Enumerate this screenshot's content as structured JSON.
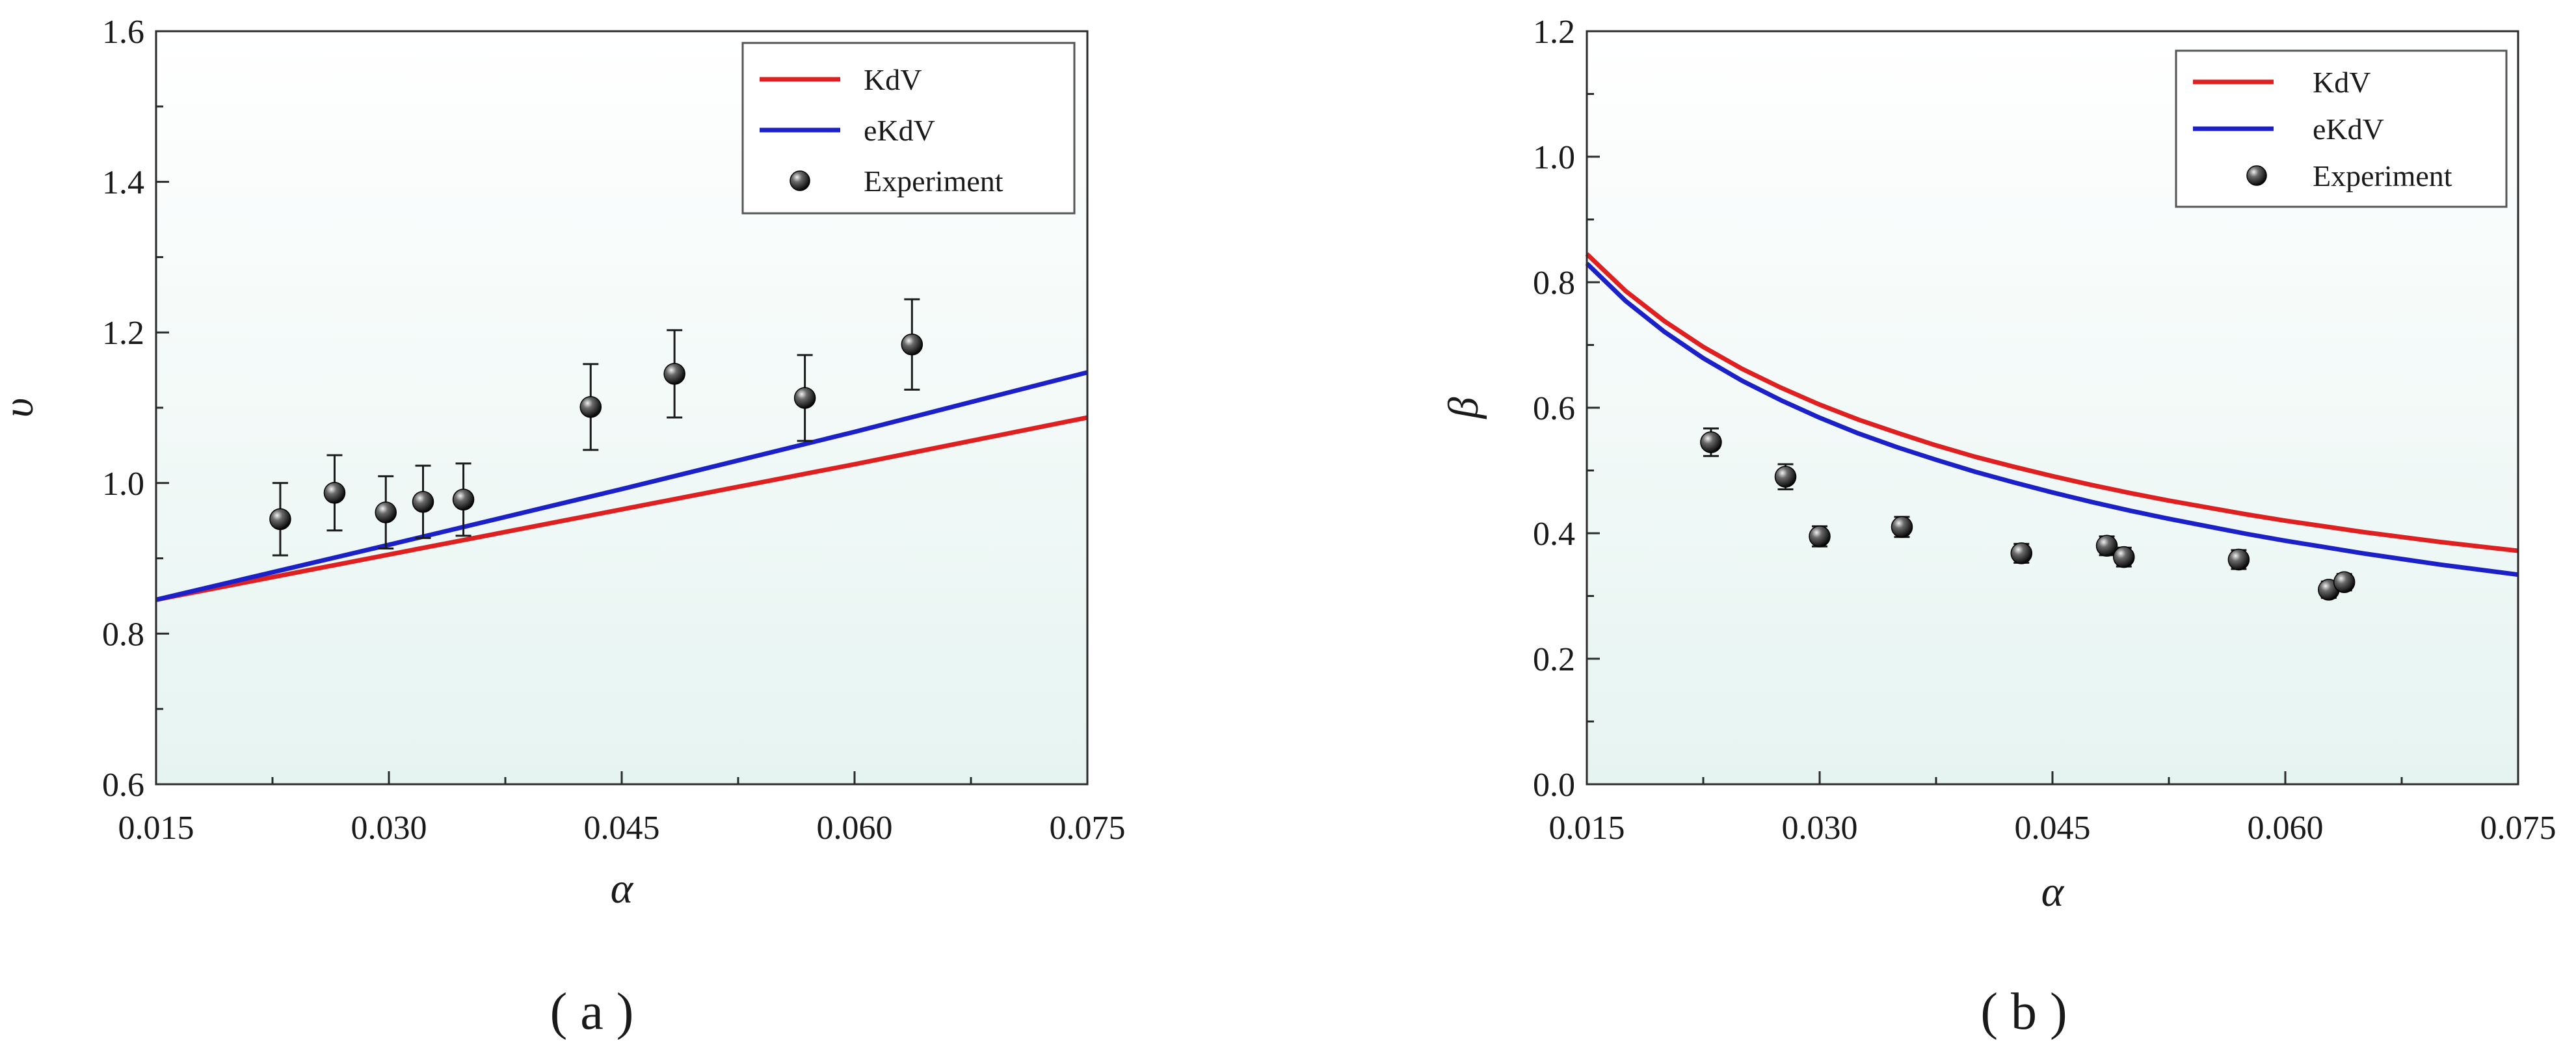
{
  "chart_data": [
    {
      "type": "line",
      "panel_label": "( a )",
      "xlabel": "α",
      "ylabel": "υ",
      "xlim": [
        0.015,
        0.075
      ],
      "ylim": [
        0.6,
        1.6
      ],
      "xticks": [
        0.015,
        0.03,
        0.045,
        0.06,
        0.075
      ],
      "xtick_labels": [
        "0.015",
        "0.030",
        "0.045",
        "0.060",
        "0.075"
      ],
      "yticks": [
        0.6,
        0.8,
        1.0,
        1.2,
        1.4,
        1.6
      ],
      "ytick_labels": [
        "0.6",
        "0.8",
        "1.0",
        "1.2",
        "1.4",
        "1.6"
      ],
      "legend": {
        "position": "top-right",
        "entries": [
          "KdV",
          "eKdV",
          "Experiment"
        ]
      },
      "series": [
        {
          "name": "KdV",
          "kind": "line",
          "color": "#e02020",
          "x": [
            0.015,
            0.03,
            0.045,
            0.06,
            0.075
          ],
          "y": [
            0.845,
            0.905,
            0.965,
            1.025,
            1.087
          ]
        },
        {
          "name": "eKdV",
          "kind": "line",
          "color": "#1c20c8",
          "x": [
            0.015,
            0.03,
            0.045,
            0.06,
            0.075
          ],
          "y": [
            0.845,
            0.918,
            0.992,
            1.068,
            1.147
          ]
        },
        {
          "name": "Experiment",
          "kind": "scatter",
          "color": "#111111",
          "x": [
            0.023,
            0.0265,
            0.0298,
            0.0322,
            0.0348,
            0.043,
            0.0484,
            0.0568,
            0.0637
          ],
          "y": [
            0.952,
            0.987,
            0.961,
            0.975,
            0.978,
            1.101,
            1.145,
            1.113,
            1.184
          ],
          "err": [
            0.048,
            0.05,
            0.048,
            0.048,
            0.048,
            0.057,
            0.058,
            0.057,
            0.06
          ]
        }
      ]
    },
    {
      "type": "line",
      "panel_label": "( b )",
      "xlabel": "α",
      "ylabel": "β",
      "xlim": [
        0.015,
        0.075
      ],
      "ylim": [
        0.0,
        1.2
      ],
      "xticks": [
        0.015,
        0.03,
        0.045,
        0.06,
        0.075
      ],
      "xtick_labels": [
        "0.015",
        "0.030",
        "0.045",
        "0.060",
        "0.075"
      ],
      "yticks": [
        0.0,
        0.2,
        0.4,
        0.6,
        0.8,
        1.0,
        1.2
      ],
      "ytick_labels": [
        "0.0",
        "0.2",
        "0.4",
        "0.6",
        "0.8",
        "1.0",
        "1.2"
      ],
      "legend": {
        "position": "top-right",
        "entries": [
          "KdV",
          "eKdV",
          "Experiment"
        ]
      },
      "series": [
        {
          "name": "KdV",
          "kind": "line",
          "color": "#e02020",
          "x": [
            0.015,
            0.0175,
            0.02,
            0.0225,
            0.025,
            0.0275,
            0.03,
            0.0325,
            0.035,
            0.0375,
            0.04,
            0.0425,
            0.045,
            0.0475,
            0.05,
            0.0525,
            0.055,
            0.0575,
            0.06,
            0.0625,
            0.065,
            0.0675,
            0.07,
            0.0725,
            0.075
          ],
          "y": [
            0.845,
            0.786,
            0.738,
            0.697,
            0.662,
            0.632,
            0.605,
            0.581,
            0.56,
            0.54,
            0.522,
            0.506,
            0.491,
            0.477,
            0.464,
            0.452,
            0.441,
            0.43,
            0.42,
            0.411,
            0.402,
            0.394,
            0.386,
            0.379,
            0.372
          ]
        },
        {
          "name": "eKdV",
          "kind": "line",
          "color": "#1c20c8",
          "x": [
            0.015,
            0.0175,
            0.02,
            0.0225,
            0.025,
            0.0275,
            0.03,
            0.0325,
            0.035,
            0.0375,
            0.04,
            0.0425,
            0.045,
            0.0475,
            0.05,
            0.0525,
            0.055,
            0.0575,
            0.06,
            0.0625,
            0.065,
            0.0675,
            0.07,
            0.0725,
            0.075
          ],
          "y": [
            0.83,
            0.77,
            0.721,
            0.679,
            0.643,
            0.612,
            0.584,
            0.559,
            0.537,
            0.517,
            0.498,
            0.481,
            0.465,
            0.45,
            0.436,
            0.423,
            0.411,
            0.399,
            0.388,
            0.378,
            0.368,
            0.359,
            0.35,
            0.342,
            0.334
          ]
        },
        {
          "name": "Experiment",
          "kind": "scatter",
          "color": "#111111",
          "x": [
            0.023,
            0.0278,
            0.03,
            0.0353,
            0.043,
            0.0485,
            0.0496,
            0.057,
            0.0628,
            0.0638
          ],
          "y": [
            0.545,
            0.49,
            0.395,
            0.41,
            0.368,
            0.38,
            0.362,
            0.358,
            0.31,
            0.322
          ],
          "err": [
            0.022,
            0.02,
            0.016,
            0.016,
            0.015,
            0.015,
            0.015,
            0.015,
            0.013,
            0.013
          ]
        }
      ]
    }
  ]
}
